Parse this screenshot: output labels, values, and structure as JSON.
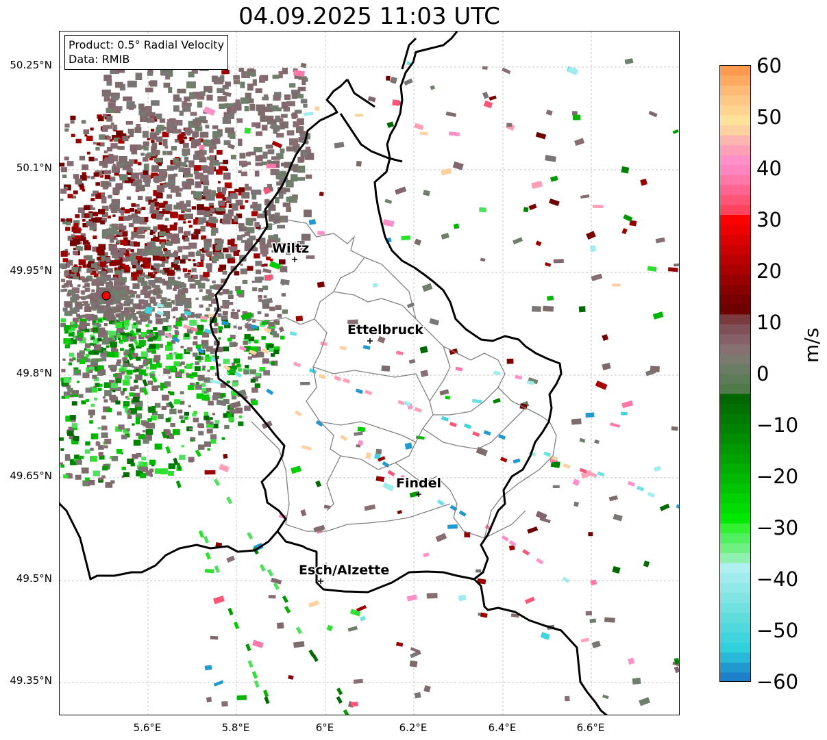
{
  "title": "04.09.2025 11:03 UTC",
  "info": {
    "product": "Product: 0.5° Radial Velocity",
    "data_source": "Data: RMIB"
  },
  "axes": {
    "lat_labels": [
      "50.25°N",
      "50.1°N",
      "49.95°N",
      "49.8°N",
      "49.65°N",
      "49.5°N",
      "49.35°N"
    ],
    "lon_labels": [
      "5.6°E",
      "5.8°E",
      "6°E",
      "6.2°E",
      "6.4°E",
      "6.6°E"
    ]
  },
  "cities": [
    {
      "name": "Wiltz"
    },
    {
      "name": "Ettelbruck"
    },
    {
      "name": "Findel"
    },
    {
      "name": "Esch/Alzette"
    }
  ],
  "radar_site": {
    "color": "#ff0000"
  },
  "colorbar": {
    "unit": "m/s",
    "ticks": [
      "60",
      "50",
      "40",
      "30",
      "20",
      "10",
      "0",
      "−10",
      "−20",
      "−30",
      "−40",
      "−50",
      "−60"
    ],
    "range": [
      -60,
      60
    ]
  },
  "colors": {
    "border": "#000000",
    "canton_line": "#808080",
    "grid": "#b0b0b0"
  }
}
